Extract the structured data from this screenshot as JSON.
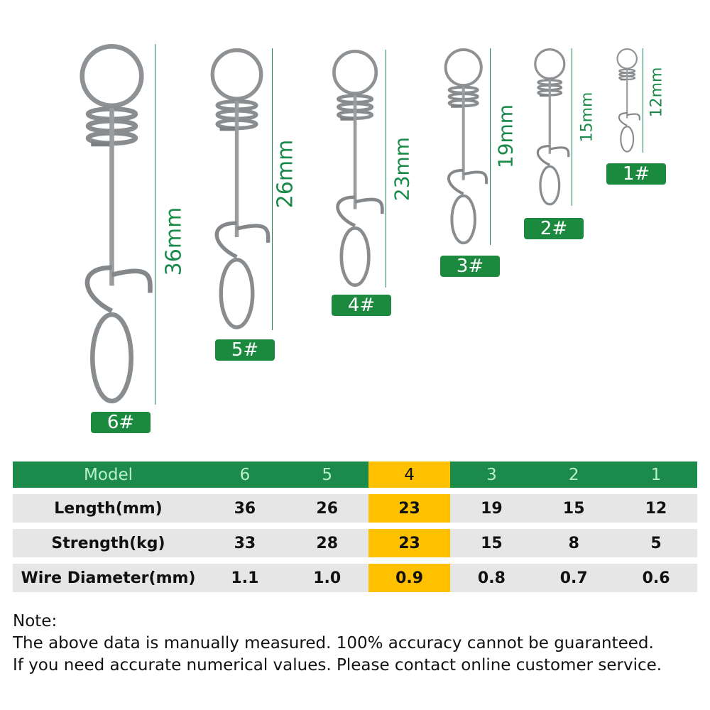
{
  "products": [
    {
      "label": "6#",
      "length_label": "36mm"
    },
    {
      "label": "5#",
      "length_label": "26mm"
    },
    {
      "label": "4#",
      "length_label": "23mm"
    },
    {
      "label": "3#",
      "length_label": "19mm"
    },
    {
      "label": "2#",
      "length_label": "15mm"
    },
    {
      "label": "1#",
      "length_label": "12mm"
    }
  ],
  "table": {
    "header": [
      "Model",
      "6",
      "5",
      "4",
      "3",
      "2",
      "1"
    ],
    "highlighted_model": "4",
    "rows": [
      [
        "Length(mm)",
        "36",
        "26",
        "23",
        "19",
        "15",
        "12"
      ],
      [
        "Strength(kg)",
        "33",
        "28",
        "23",
        "15",
        "8",
        "5"
      ],
      [
        "Wire Diameter(mm)",
        "1.1",
        "1.0",
        "0.9",
        "0.8",
        "0.7",
        "0.6"
      ]
    ]
  },
  "note": {
    "title": "Note:",
    "lines": [
      "The above data is manually measured. 100% accuracy cannot be guaranteed.",
      "If you need accurate numerical values. Please contact online customer service."
    ]
  },
  "colors": {
    "green": "#1b8a4b",
    "highlight": "#ffc000",
    "row_bg": "#e6e6e6",
    "header_text": "#b9f0cc"
  }
}
